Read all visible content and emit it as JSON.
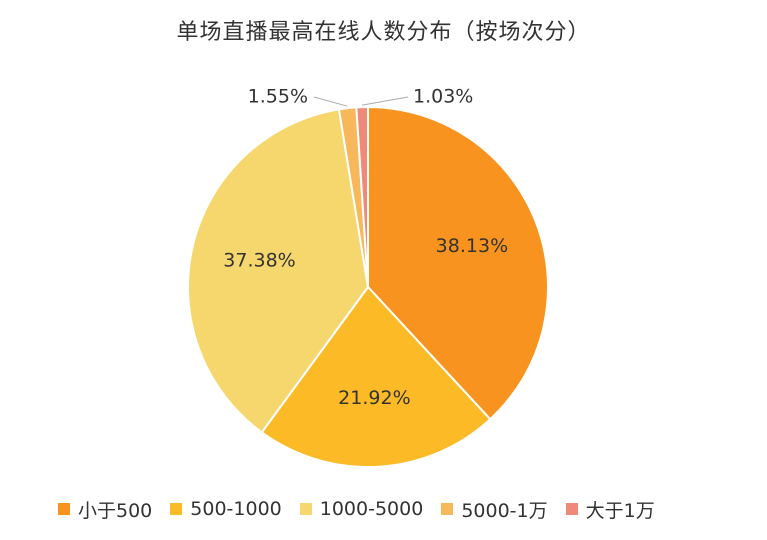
{
  "chart_data": {
    "type": "pie",
    "title": "单场直播最高在线人数分布（按场次分）",
    "categories": [
      "小于500",
      "500-1000",
      "1000-5000",
      "5000-1万",
      "大于1万"
    ],
    "values": [
      38.13,
      21.92,
      37.38,
      1.55,
      1.03
    ],
    "value_labels": [
      "38.13%",
      "21.92%",
      "37.38%",
      "1.55%",
      "1.03%"
    ],
    "colors": [
      "#F7931E",
      "#FBBA26",
      "#F5D76E",
      "#F6B85A",
      "#EF8A7A"
    ],
    "start_angle": "12 o'clock",
    "direction": "clockwise",
    "legend_position": "bottom"
  }
}
